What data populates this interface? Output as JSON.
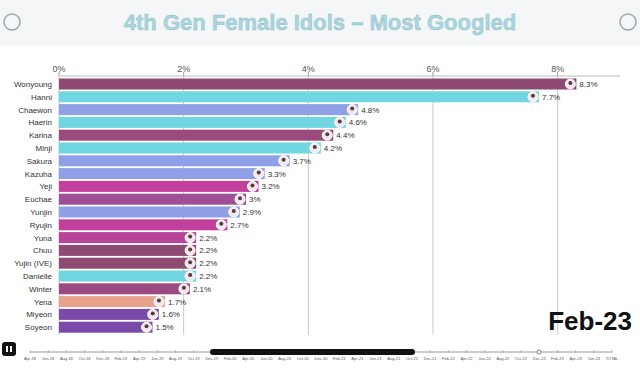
{
  "chart_data": {
    "type": "bar",
    "orientation": "horizontal",
    "title": "4th Gen Female Idols – Most Googled",
    "annotation": "Feb-23",
    "categories": [
      "Wonyoung",
      "Hanni",
      "Chaewon",
      "Haerin",
      "Karina",
      "Minji",
      "Sakura",
      "Kazuha",
      "Yeji",
      "Euchae",
      "Yunjin",
      "Ryujin",
      "Yuna",
      "Chuu",
      "Yujin (IVE)",
      "Danielle",
      "Winter",
      "Yena",
      "Miyeon",
      "Soyeon"
    ],
    "values": [
      8.3,
      7.7,
      4.8,
      4.6,
      4.4,
      4.2,
      3.7,
      3.3,
      3.2,
      3,
      2.9,
      2.7,
      2.2,
      2.2,
      2.2,
      2.2,
      2.1,
      1.7,
      1.6,
      1.5
    ],
    "value_labels": [
      "8.3%",
      "7.7%",
      "4.8%",
      "4.6%",
      "4.4%",
      "4.2%",
      "3.7%",
      "3.3%",
      "3.2%",
      "3%",
      "2.9%",
      "2.7%",
      "2.2%",
      "2.2%",
      "2.2%",
      "2.2%",
      "2.1%",
      "1.7%",
      "1.6%",
      "1.5%"
    ],
    "colors": [
      "#8e4a72",
      "#6fd6e2",
      "#8fa0e8",
      "#6fd6e2",
      "#9a4a7c",
      "#6fd6e2",
      "#8fa0e8",
      "#8fa0e8",
      "#c2409c",
      "#a04e98",
      "#8fa0e8",
      "#c2409c",
      "#b8449a",
      "#8e4a72",
      "#8e4a72",
      "#6fd6e2",
      "#9a4a80",
      "#e8a28c",
      "#7a4aa8",
      "#7a4aa8"
    ],
    "xlim": [
      0,
      9
    ],
    "xticks": [
      {
        "value": 0,
        "label": "0%"
      },
      {
        "value": 2,
        "label": "2%"
      },
      {
        "value": 4,
        "label": "4%"
      },
      {
        "value": 6,
        "label": "6%"
      },
      {
        "value": 8,
        "label": "8%"
      }
    ],
    "grid": true,
    "data_labels": true,
    "timeline_labels": [
      "Apr-18",
      "Jun-18",
      "Aug-18",
      "Oct-18",
      "Dec-18",
      "Feb-19",
      "Apr-19",
      "Jun-19",
      "Aug-19",
      "Oct-19",
      "Dec-19",
      "Feb-20",
      "Apr-20",
      "Jun-20",
      "Aug-20",
      "Oct-20",
      "Dec-20",
      "Feb-21",
      "Apr-21",
      "Jun-21",
      "Aug-21",
      "Oct-21",
      "Dec-21",
      "Feb-22",
      "Apr-22",
      "Jun-22",
      "Aug-22",
      "Oct-22",
      "Dec-22",
      "Feb-23",
      "Apr-23",
      "Jun-23",
      "TOTAL"
    ]
  }
}
